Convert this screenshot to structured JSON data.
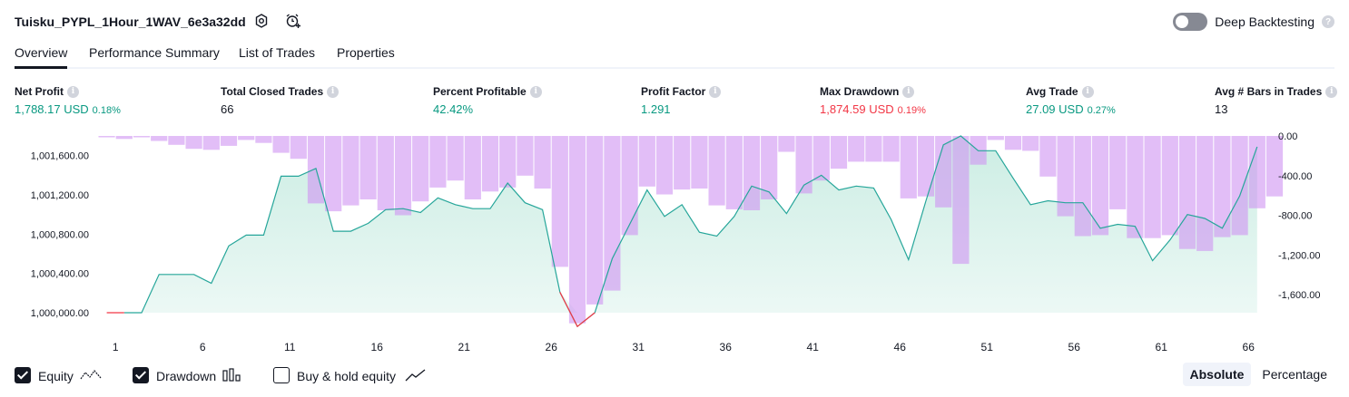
{
  "header": {
    "title": "Tuisku_PYPL_1Hour_1WAV_6e3a32dd",
    "icons": [
      "settings-icon",
      "alarm-add-icon"
    ],
    "deep_backtesting_label": "Deep Backtesting",
    "deep_backtesting_enabled": false,
    "help_glyph": "?"
  },
  "tabs": [
    {
      "label": "Overview",
      "active": true
    },
    {
      "label": "Performance Summary",
      "active": false
    },
    {
      "label": "List of Trades",
      "active": false
    },
    {
      "label": "Properties",
      "active": false
    }
  ],
  "info_glyph": "i",
  "metrics": [
    {
      "label": "Net Profit",
      "value": "1,788.17 USD",
      "pct": "0.18%",
      "color": "#089981"
    },
    {
      "label": "Total Closed Trades",
      "value": "66",
      "pct": "",
      "color": "#131722"
    },
    {
      "label": "Percent Profitable",
      "value": "42.42%",
      "pct": "",
      "color": "#089981"
    },
    {
      "label": "Profit Factor",
      "value": "1.291",
      "pct": "",
      "color": "#089981"
    },
    {
      "label": "Max Drawdown",
      "value": "1,874.59 USD",
      "pct": "0.19%",
      "color": "#f23645"
    },
    {
      "label": "Avg Trade",
      "value": "27.09 USD",
      "pct": "0.27%",
      "color": "#089981"
    },
    {
      "label": "Avg # Bars in Trades",
      "value": "13",
      "pct": "",
      "color": "#131722"
    }
  ],
  "chart_data": {
    "type": "area",
    "x": [
      0,
      1,
      2,
      3,
      4,
      5,
      6,
      7,
      8,
      9,
      10,
      11,
      12,
      13,
      14,
      15,
      16,
      17,
      18,
      19,
      20,
      21,
      22,
      23,
      24,
      25,
      26,
      27,
      28,
      29,
      30,
      31,
      32,
      33,
      34,
      35,
      36,
      37,
      38,
      39,
      40,
      41,
      42,
      43,
      44,
      45,
      46,
      47,
      48,
      49,
      50,
      51,
      52,
      53,
      54,
      55,
      56,
      57,
      58,
      59,
      60,
      61,
      62,
      63,
      64,
      65,
      66,
      67
    ],
    "x_ticks": [
      1,
      6,
      11,
      16,
      21,
      26,
      31,
      36,
      41,
      46,
      51,
      56,
      61,
      66
    ],
    "equity": [
      1000000,
      1000000,
      1000390,
      1000390,
      1000390,
      1000300,
      1000680,
      1000790,
      1000790,
      1001390,
      1001390,
      1001470,
      1000830,
      1000830,
      1000910,
      1001050,
      1001060,
      1001020,
      1001170,
      1001100,
      1001060,
      1001060,
      1001320,
      1001120,
      1001050,
      1000210,
      999860,
      1000000,
      1000550,
      1000900,
      1001250,
      1000980,
      1001100,
      1000820,
      1000780,
      1000980,
      1001290,
      1001230,
      1001010,
      1001300,
      1001400,
      1001250,
      1001290,
      1001270,
      1000950,
      1000540,
      1001140,
      1001710,
      1001800,
      1001650,
      1001650,
      1001370,
      1001100,
      1001140,
      1001120,
      1001120,
      1000860,
      1000900,
      1000880,
      1000530,
      1000740,
      1001000,
      1000960,
      1000860,
      1001190,
      1001690
    ],
    "equity_x_offset": 1,
    "drawdown": [
      -10,
      -30,
      0,
      -50,
      -90,
      -130,
      -140,
      -100,
      -40,
      -70,
      -170,
      -230,
      -680,
      -760,
      -700,
      -640,
      -750,
      -800,
      -660,
      -520,
      -450,
      -640,
      -560,
      -520,
      -400,
      -530,
      -1320,
      -1890,
      -1700,
      -1560,
      -1000,
      -510,
      -590,
      -540,
      -530,
      -700,
      -740,
      -750,
      -640,
      -160,
      -580,
      -450,
      -330,
      -260,
      -260,
      -260,
      -630,
      -610,
      -720,
      -1290,
      -290,
      -40,
      -140,
      -150,
      -410,
      -810,
      -1010,
      -1000,
      -740,
      -1030,
      -1030,
      -1000,
      -1140,
      -1160,
      -1020,
      -1000,
      -730,
      -610
    ],
    "left_axis_ticks": [
      "1,000,000.00",
      "1,000,400.00",
      "1,000,800.00",
      "1,001,200.00",
      "1,001,600.00"
    ],
    "left_axis_values": [
      1000000,
      1000400,
      1000800,
      1001200,
      1001600
    ],
    "right_axis_ticks": [
      "0.00",
      "-400.00",
      "-800.00",
      "-1,200.00",
      "-1,600.00"
    ],
    "right_axis_values": [
      0,
      -400,
      -800,
      -1200,
      -1600
    ],
    "colors": {
      "equity_line": "#26a69a",
      "equity_fill": "#c9ece2",
      "drawdown_bar": "#ce93f2",
      "negative_line": "#f23645"
    }
  },
  "legend": [
    {
      "label": "Equity",
      "checked": true,
      "icon": "equity-line-icon"
    },
    {
      "label": "Drawdown",
      "checked": true,
      "icon": "bars-icon"
    },
    {
      "label": "Buy & hold equity",
      "checked": false,
      "icon": "trend-line-icon"
    }
  ],
  "modes": [
    {
      "label": "Absolute",
      "active": true
    },
    {
      "label": "Percentage",
      "active": false
    }
  ]
}
